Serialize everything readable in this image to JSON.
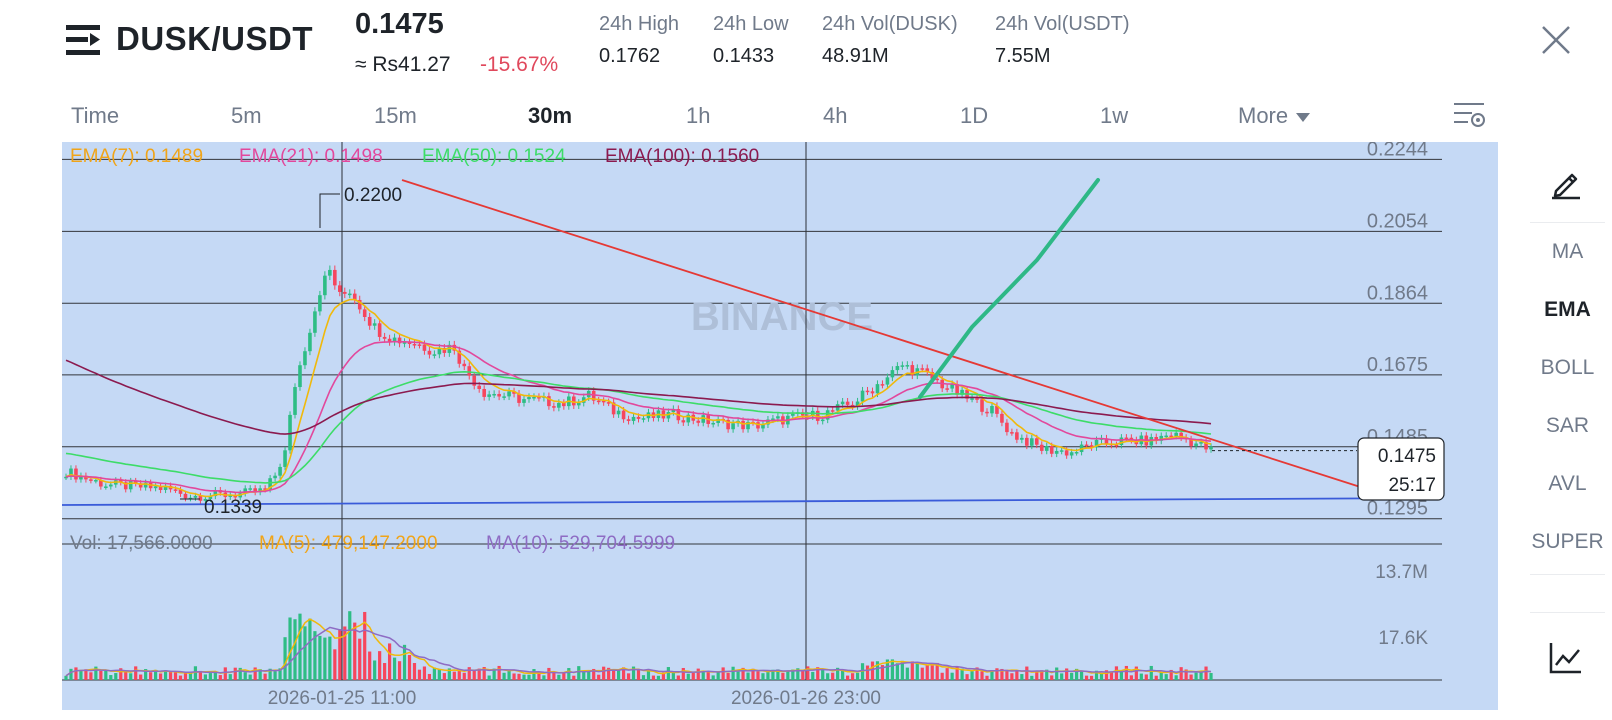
{
  "header": {
    "pair": "DUSK/USDT",
    "price": "0.1475",
    "approx": "≈ Rs41.27",
    "change": "-15.67%",
    "stats": [
      {
        "label": "24h High",
        "value": "0.1762"
      },
      {
        "label": "24h Low",
        "value": "0.1433"
      },
      {
        "label": "24h Vol(DUSK)",
        "value": "48.91M"
      },
      {
        "label": "24h Vol(USDT)",
        "value": "7.55M"
      }
    ]
  },
  "timeframes": [
    "Time",
    "5m",
    "15m",
    "30m",
    "1h",
    "4h",
    "1D",
    "1w",
    "More"
  ],
  "active_timeframe": "30m",
  "right_panel": {
    "indicators": [
      "MA",
      "EMA",
      "BOLL",
      "SAR",
      "AVL",
      "SUPER"
    ],
    "active": "EMA"
  },
  "chart_data": {
    "type": "candlestick",
    "watermark": "BINANCE",
    "colors": {
      "up": "#2ebd85",
      "down": "#f6465d",
      "ema7": "#f0b90b",
      "ema21": "#e2489c",
      "ema50": "#3ddc68",
      "ema100": "#8b1a4f",
      "trend": "#e53935",
      "support": "#3a5bd9",
      "drawn": "#2eb886",
      "bg": "#c5d9f5"
    },
    "ema_legend": [
      {
        "text": "EMA(7): 0.1489",
        "color": "#f0a418"
      },
      {
        "text": "EMA(21): 0.1498",
        "color": "#e2489c"
      },
      {
        "text": "EMA(50): 0.1524",
        "color": "#3ddc68"
      },
      {
        "text": "EMA(100): 0.1560",
        "color": "#8b1a4f"
      }
    ],
    "price_ticks": [
      "0.2244",
      "0.2054",
      "0.1864",
      "0.1675",
      "0.1485",
      "0.1295"
    ],
    "price_range": [
      0.126,
      0.229
    ],
    "high_label": "0.2200",
    "low_label": "0.1339",
    "current_price": "0.1475",
    "countdown": "25:17",
    "volume_legend": [
      {
        "text": "Vol: 17,566.0000",
        "color": "#707a8a"
      },
      {
        "text": "MA(5): 479,147.2000",
        "color": "#f0a418"
      },
      {
        "text": "MA(10): 529,704.5999",
        "color": "#8e6cc4"
      }
    ],
    "volume_ticks": [
      "13.7M",
      "17.6K"
    ],
    "x_labels": [
      "2026-01-25 11:00",
      "2026-01-26 23:00"
    ],
    "ohlc_keypoints": [
      [
        0,
        0.142
      ],
      [
        8,
        0.1385
      ],
      [
        20,
        0.1375
      ],
      [
        25,
        0.1355
      ],
      [
        35,
        0.136
      ],
      [
        40,
        0.137
      ],
      [
        42,
        0.141
      ],
      [
        44,
        0.147
      ],
      [
        46,
        0.165
      ],
      [
        49,
        0.18
      ],
      [
        51,
        0.19
      ],
      [
        53,
        0.195
      ],
      [
        55,
        0.188
      ],
      [
        57,
        0.19
      ],
      [
        59,
        0.186
      ],
      [
        62,
        0.18
      ],
      [
        66,
        0.177
      ],
      [
        70,
        0.176
      ],
      [
        74,
        0.174
      ],
      [
        78,
        0.175
      ],
      [
        80,
        0.169
      ],
      [
        84,
        0.163
      ],
      [
        92,
        0.161
      ],
      [
        100,
        0.16
      ],
      [
        105,
        0.162
      ],
      [
        110,
        0.158
      ],
      [
        115,
        0.156
      ],
      [
        122,
        0.157
      ],
      [
        130,
        0.155
      ],
      [
        138,
        0.154
      ],
      [
        145,
        0.156
      ],
      [
        152,
        0.157
      ],
      [
        158,
        0.16
      ],
      [
        164,
        0.166
      ],
      [
        168,
        0.17
      ],
      [
        172,
        0.168
      ],
      [
        176,
        0.165
      ],
      [
        180,
        0.162
      ],
      [
        186,
        0.158
      ],
      [
        190,
        0.152
      ],
      [
        196,
        0.148
      ],
      [
        202,
        0.147
      ],
      [
        206,
        0.149
      ],
      [
        212,
        0.15
      ],
      [
        218,
        0.15
      ],
      [
        222,
        0.152
      ],
      [
        226,
        0.15
      ],
      [
        230,
        0.1475
      ]
    ]
  }
}
